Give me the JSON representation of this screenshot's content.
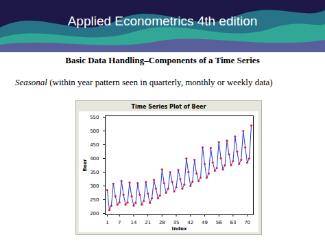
{
  "slide": {
    "banner": "Applied Econometrics 4th edition",
    "heading": "Basic Data Handling–Components of a Time Series",
    "text_italic": "Seasonal",
    "text": "(within year pattern seen in quarterly, monthly or weekly data)"
  },
  "chart_data": {
    "type": "line",
    "title": "Time Series Plot of Beer",
    "x_label": "Index",
    "y_label": "Beer",
    "x": [
      1,
      2,
      3,
      4,
      5,
      6,
      7,
      8,
      9,
      10,
      11,
      12,
      13,
      14,
      15,
      16,
      17,
      18,
      19,
      20,
      21,
      22,
      23,
      24,
      25,
      26,
      27,
      28,
      29,
      30,
      31,
      32,
      33,
      34,
      35,
      36,
      37,
      38,
      39,
      40,
      41,
      42,
      43,
      44,
      45,
      46,
      47,
      48,
      49,
      50,
      51,
      52,
      53,
      54,
      55,
      56,
      57,
      58,
      59,
      60,
      61,
      62,
      63,
      64,
      65,
      66,
      67,
      68,
      69,
      70,
      71,
      72
    ],
    "series": [
      {
        "name": "Beer",
        "color": "#2233cc",
        "marker": "circle",
        "values": [
          285,
          212,
          228,
          308,
          262,
          232,
          240,
          318,
          268,
          232,
          240,
          312,
          262,
          228,
          238,
          310,
          268,
          232,
          245,
          315,
          272,
          238,
          255,
          322,
          290,
          255,
          265,
          360,
          310,
          275,
          290,
          350,
          315,
          280,
          295,
          358,
          325,
          290,
          305,
          400,
          350,
          300,
          315,
          395,
          345,
          318,
          330,
          440,
          380,
          330,
          345,
          438,
          385,
          355,
          365,
          460,
          400,
          360,
          375,
          465,
          415,
          375,
          390,
          480,
          425,
          380,
          395,
          500,
          440,
          385,
          400,
          520
        ]
      }
    ],
    "xlim": [
      0,
      73
    ],
    "xticks": [
      1,
      7,
      14,
      21,
      28,
      35,
      42,
      49,
      56,
      63,
      70
    ],
    "ylim": [
      195,
      555
    ],
    "yticks": [
      200,
      250,
      300,
      350,
      400,
      450,
      500,
      550
    ]
  }
}
